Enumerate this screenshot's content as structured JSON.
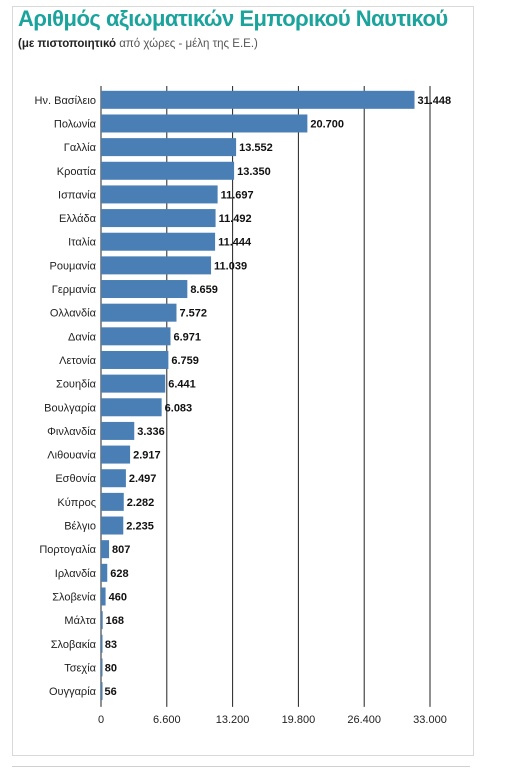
{
  "title": "Αριθμός αξιωματικών Εμπορικού Ναυτικού",
  "subtitle_bold": "(με πιστοποιητικό",
  "subtitle_rest": "από χώρες - μέλη της Ε.Ε.)",
  "colors": {
    "bar": "#4a7fb5",
    "title": "#1ba39c",
    "grid": "#222222"
  },
  "chart_data": {
    "type": "bar",
    "orientation": "horizontal",
    "title": "Αριθμός αξιωματικών Εμπορικού Ναυτικού",
    "subtitle": "(με πιστοποιητικό από χώρες - μέλη της Ε.Ε.)",
    "categories": [
      "Ην. Βασίλειο",
      "Πολωνία",
      "Γαλλία",
      "Κροατία",
      "Ισπανία",
      "Ελλάδα",
      "Ιταλία",
      "Ρουμανία",
      "Γερμανία",
      "Ολλανδία",
      "Δανία",
      "Λετονία",
      "Σουηδία",
      "Βουλγαρία",
      "Φινλανδία",
      "Λιθουανία",
      "Εσθονία",
      "Κύπρος",
      "Βέλγιο",
      "Πορτογαλία",
      "Ιρλανδία",
      "Σλοβενία",
      "Μάλτα",
      "Σλοβακία",
      "Τσεχία",
      "Ουγγαρία"
    ],
    "values": [
      31448,
      20700,
      13552,
      13350,
      11697,
      11492,
      11444,
      11039,
      8659,
      7572,
      6971,
      6759,
      6441,
      6083,
      3336,
      2917,
      2497,
      2282,
      2235,
      807,
      628,
      460,
      168,
      83,
      80,
      56
    ],
    "value_labels": [
      "31.448",
      "20.700",
      "13.552",
      "13.350",
      "11.697",
      "11.492",
      "11.444",
      "11.039",
      "8.659",
      "7.572",
      "6.971",
      "6.759",
      "6.441",
      "6.083",
      "3.336",
      "2.917",
      "2.497",
      "2.282",
      "2.235",
      "807",
      "628",
      "460",
      "168",
      "83",
      "80",
      "56"
    ],
    "xlim": [
      0,
      33000
    ],
    "xticks": [
      0,
      6600,
      13200,
      19800,
      26400,
      33000
    ],
    "xtick_labels": [
      "0",
      "6.600",
      "13.200",
      "19.800",
      "26.400",
      "33.000"
    ],
    "grid": true,
    "xlabel": "",
    "ylabel": ""
  }
}
